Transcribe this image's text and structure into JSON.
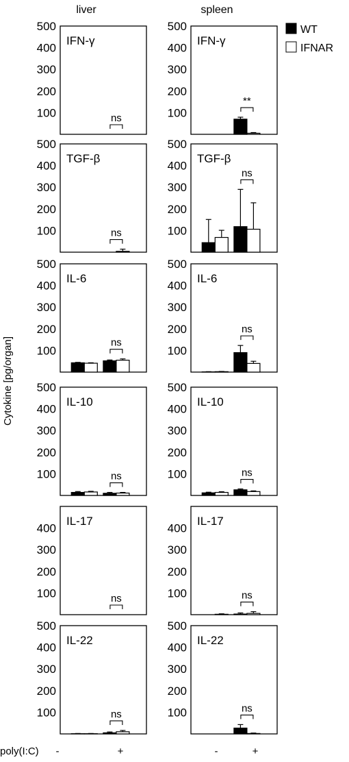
{
  "chart_data": {
    "type": "bar",
    "ylabel": "Cytokine [pg/organ]",
    "columns": [
      "liver",
      "spleen"
    ],
    "row_label": "poly(I:C)",
    "conditions": [
      "-",
      "+"
    ],
    "ylim": [
      0,
      500
    ],
    "yticks": [
      100,
      200,
      300,
      400,
      500
    ],
    "legend": {
      "placement": "top-right",
      "entries": [
        {
          "name": "WT",
          "color": "#000000"
        },
        {
          "name": "IFNAR",
          "color": "#ffffff"
        }
      ]
    },
    "panels": [
      {
        "cytokine": "IFN-γ",
        "tissue": "liver",
        "series": [
          {
            "name": "WT",
            "values": [
              0,
              0
            ],
            "errors": [
              0,
              0
            ]
          },
          {
            "name": "IFNAR",
            "values": [
              0,
              0
            ],
            "errors": [
              0,
              0
            ]
          }
        ],
        "annotation": "ns"
      },
      {
        "cytokine": "IFN-γ",
        "tissue": "spleen",
        "series": [
          {
            "name": "WT",
            "values": [
              0,
              70
            ],
            "errors": [
              0,
              9
            ]
          },
          {
            "name": "IFNAR",
            "values": [
              0,
              5
            ],
            "errors": [
              0,
              3
            ]
          }
        ],
        "annotation": "**"
      },
      {
        "cytokine": "TGF-β",
        "tissue": "liver",
        "series": [
          {
            "name": "WT",
            "values": [
              0,
              0
            ],
            "errors": [
              0,
              0
            ]
          },
          {
            "name": "IFNAR",
            "values": [
              0,
              4
            ],
            "errors": [
              0,
              10
            ]
          }
        ],
        "annotation": "ns"
      },
      {
        "cytokine": "TGF-β",
        "tissue": "spleen",
        "series": [
          {
            "name": "WT",
            "values": [
              44,
              118
            ],
            "errors": [
              107,
              172
            ]
          },
          {
            "name": "IFNAR",
            "values": [
              68,
              106
            ],
            "errors": [
              33,
              122
            ]
          }
        ],
        "annotation": "ns"
      },
      {
        "cytokine": "IL-6",
        "tissue": "liver",
        "series": [
          {
            "name": "WT",
            "values": [
              43,
              52
            ],
            "errors": [
              2,
              4
            ]
          },
          {
            "name": "IFNAR",
            "values": [
              41,
              55
            ],
            "errors": [
              2,
              6
            ]
          }
        ],
        "annotation": "ns"
      },
      {
        "cytokine": "IL-6",
        "tissue": "spleen",
        "series": [
          {
            "name": "WT",
            "values": [
              1,
              90
            ],
            "errors": [
              1,
              33
            ]
          },
          {
            "name": "IFNAR",
            "values": [
              2,
              40
            ],
            "errors": [
              1,
              10
            ]
          }
        ],
        "annotation": "ns"
      },
      {
        "cytokine": "IL-10",
        "tissue": "liver",
        "series": [
          {
            "name": "WT",
            "values": [
              14,
              10
            ],
            "errors": [
              4,
              4
            ]
          },
          {
            "name": "IFNAR",
            "values": [
              16,
              11
            ],
            "errors": [
              3,
              3
            ]
          }
        ],
        "annotation": "ns"
      },
      {
        "cytokine": "IL-10",
        "tissue": "spleen",
        "series": [
          {
            "name": "WT",
            "values": [
              12,
              26
            ],
            "errors": [
              3,
              4
            ]
          },
          {
            "name": "IFNAR",
            "values": [
              14,
              18
            ],
            "errors": [
              3,
              3
            ]
          }
        ],
        "annotation": "ns"
      },
      {
        "cytokine": "IL-17",
        "tissue": "liver",
        "series": [
          {
            "name": "WT",
            "values": [
              0,
              0
            ],
            "errors": [
              0,
              0
            ]
          },
          {
            "name": "IFNAR",
            "values": [
              0,
              0
            ],
            "errors": [
              0,
              0
            ]
          }
        ],
        "annotation": "ns"
      },
      {
        "cytokine": "IL-17",
        "tissue": "spleen",
        "series": [
          {
            "name": "WT",
            "values": [
              0,
              3
            ],
            "errors": [
              0,
              5
            ]
          },
          {
            "name": "IFNAR",
            "values": [
              2,
              6
            ],
            "errors": [
              2,
              8
            ]
          }
        ],
        "annotation": "ns"
      },
      {
        "cytokine": "IL-22",
        "tissue": "liver",
        "series": [
          {
            "name": "WT",
            "values": [
              1,
              5
            ],
            "errors": [
              1,
              4
            ]
          },
          {
            "name": "IFNAR",
            "values": [
              1,
              10
            ],
            "errors": [
              1,
              6
            ]
          }
        ],
        "annotation": "ns"
      },
      {
        "cytokine": "IL-22",
        "tissue": "spleen",
        "series": [
          {
            "name": "WT",
            "values": [
              0,
              27
            ],
            "errors": [
              0,
              16
            ]
          },
          {
            "name": "IFNAR",
            "values": [
              0,
              2
            ],
            "errors": [
              0,
              2
            ]
          }
        ],
        "annotation": "ns"
      }
    ]
  }
}
